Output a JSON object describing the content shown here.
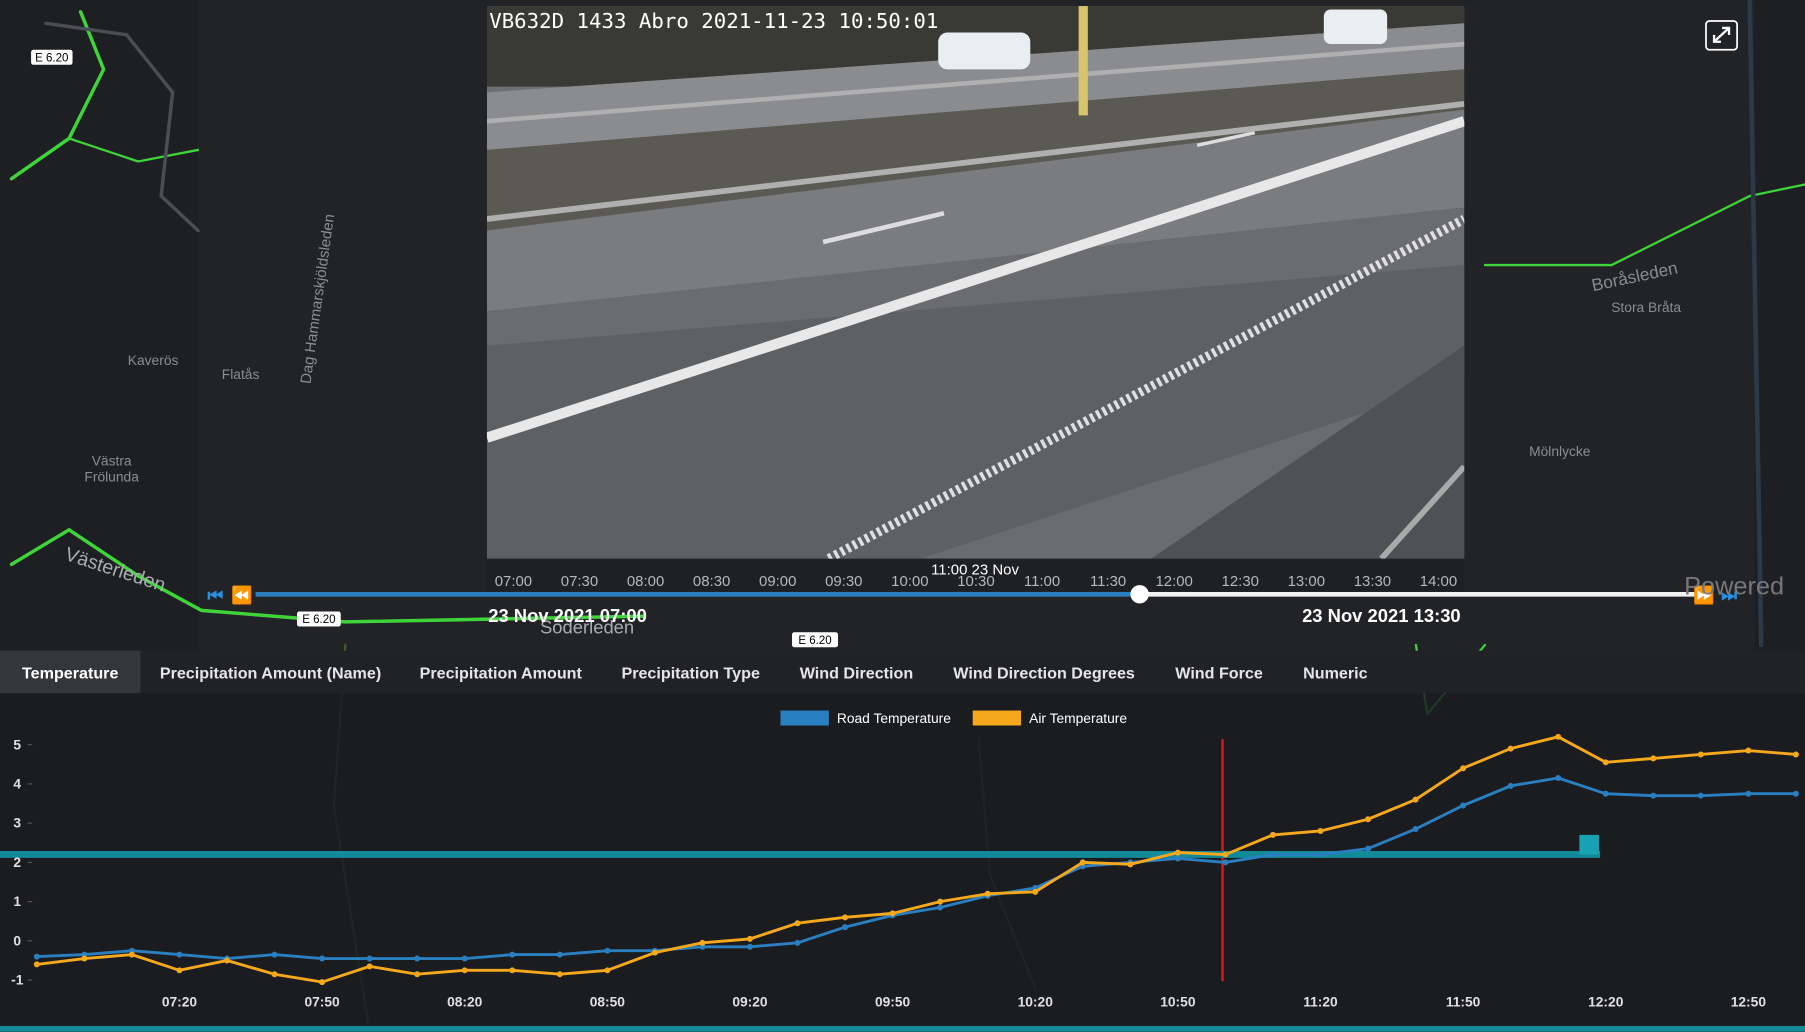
{
  "camera": {
    "overlay": "VB632D 1433 Abro 2021-11-23 10:50:01"
  },
  "map": {
    "labels": [
      "Kaverös",
      "Västra",
      "Frölunda",
      "Västerleden",
      "Söderleden",
      "Boråsleden",
      "Stora Bråta",
      "Mölnlycke",
      "Flatås",
      "Dag Hammarskjöldsleden",
      "E 6.20",
      "E 6.20",
      "E 6.20"
    ]
  },
  "timeline": {
    "current": "11:00 23 Nov",
    "ticks": [
      "07:00",
      "07:30",
      "08:00",
      "08:30",
      "09:00",
      "09:30",
      "10:00",
      "10:30",
      "11:00",
      "11:30",
      "12:00",
      "12:30",
      "13:00",
      "13:30",
      "14:00"
    ],
    "start": "23 Nov 2021 07:00",
    "end": "23 Nov 2021 13:30",
    "badge": "Powered"
  },
  "tabs": [
    "Temperature",
    "Precipitation Amount (Name)",
    "Precipitation Amount",
    "Precipitation Type",
    "Wind Direction",
    "Wind Direction Degrees",
    "Wind Force",
    "Numeric"
  ],
  "active_tab": "Temperature",
  "chart_data": {
    "type": "line",
    "categories": [
      null,
      null,
      null,
      "07:20",
      null,
      null,
      "07:50",
      null,
      null,
      "08:20",
      null,
      null,
      "08:50",
      null,
      null,
      "09:20",
      null,
      null,
      "09:50",
      null,
      null,
      "10:20",
      null,
      null,
      "10:50",
      null,
      null,
      "11:20",
      null,
      null,
      "11:50",
      null,
      null,
      "12:20",
      null,
      null,
      "12:50",
      null
    ],
    "series": [
      {
        "name": "Road Temperature",
        "color": "#2a7fc0",
        "values": [
          -0.4,
          -0.35,
          -0.25,
          -0.35,
          -0.45,
          -0.35,
          -0.45,
          -0.45,
          -0.45,
          -0.45,
          -0.35,
          -0.35,
          -0.25,
          -0.25,
          -0.15,
          -0.15,
          -0.05,
          0.35,
          0.65,
          0.85,
          1.15,
          1.35,
          1.9,
          2.0,
          2.1,
          2.0,
          2.2,
          2.2,
          2.35,
          2.85,
          3.45,
          3.95,
          4.15,
          3.75,
          3.7,
          3.7,
          3.75,
          3.75
        ]
      },
      {
        "name": "Air Temperature",
        "color": "#f5a81c",
        "values": [
          -0.6,
          -0.45,
          -0.35,
          -0.75,
          -0.5,
          -0.85,
          -1.05,
          -0.65,
          -0.85,
          -0.75,
          -0.75,
          -0.85,
          -0.75,
          -0.3,
          -0.05,
          0.05,
          0.45,
          0.6,
          0.7,
          1.0,
          1.2,
          1.25,
          2.0,
          1.95,
          2.25,
          2.2,
          2.7,
          2.8,
          3.1,
          3.6,
          4.4,
          4.9,
          5.2,
          4.55,
          4.65,
          4.75,
          4.85,
          4.75
        ]
      }
    ],
    "ylim": [
      -1.2,
      5.4
    ],
    "yticks": [
      -1,
      0,
      1,
      2,
      3,
      4,
      5
    ],
    "grid": false
  }
}
